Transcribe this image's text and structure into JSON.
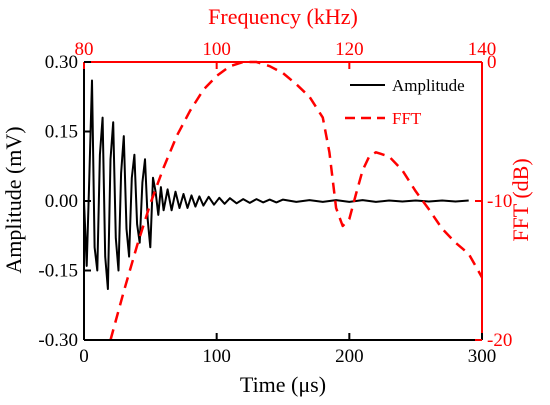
{
  "chart_data": {
    "type": "line",
    "title": "",
    "colors": {
      "amplitude": "#000000",
      "fft": "#ff0000",
      "axis": "#000000",
      "secondary_axis": "#ff0000"
    },
    "axes": {
      "x_bottom": {
        "label": "Time (μs)",
        "range": [
          0,
          300
        ],
        "ticks": [
          0,
          100,
          200,
          300
        ],
        "tick_labels": [
          "0",
          "100",
          "200",
          "300"
        ]
      },
      "x_top": {
        "label": "Frequency (kHz)",
        "range": [
          80,
          140
        ],
        "ticks": [
          80,
          100,
          120,
          140
        ],
        "tick_labels": [
          "80",
          "100",
          "120",
          "140"
        ]
      },
      "y_left": {
        "label": "Amplitude (mV)",
        "range": [
          -0.3,
          0.3
        ],
        "ticks": [
          -0.3,
          -0.15,
          0.0,
          0.15,
          0.3
        ],
        "tick_labels": [
          "-0.30",
          "-0.15",
          "0.00",
          "0.15",
          "0.30"
        ]
      },
      "y_right": {
        "label": "FFT (dB)",
        "range": [
          -20,
          0
        ],
        "ticks": [
          -20,
          -10,
          0
        ],
        "tick_labels": [
          "-20",
          "-10",
          "0"
        ]
      }
    },
    "legend": {
      "placement": "top-right",
      "entries": [
        {
          "name": "Amplitude",
          "style": "solid",
          "color": "#000000"
        },
        {
          "name": "FFT",
          "style": "dashed",
          "color": "#ff0000"
        }
      ]
    },
    "series": [
      {
        "name": "Amplitude",
        "x_axis": "x_bottom",
        "y_axis": "y_left",
        "note": "damped oscillation; values read from chart",
        "x": [
          0,
          2,
          4,
          6,
          8,
          10,
          12,
          14,
          16,
          18,
          20,
          22,
          24,
          26,
          28,
          30,
          32,
          34,
          36,
          38,
          40,
          42,
          44,
          46,
          48,
          50,
          52,
          54,
          56,
          58,
          60,
          63,
          66,
          69,
          72,
          75,
          78,
          81,
          84,
          87,
          90,
          94,
          98,
          102,
          106,
          110,
          115,
          120,
          125,
          130,
          135,
          140,
          145,
          150,
          160,
          170,
          180,
          190,
          200,
          210,
          220,
          230,
          240,
          250,
          260,
          270,
          280,
          290
        ],
        "y": [
          0.0,
          -0.14,
          0.05,
          0.26,
          -0.1,
          -0.15,
          0.1,
          0.18,
          -0.12,
          -0.19,
          0.09,
          0.17,
          -0.08,
          -0.15,
          0.06,
          0.14,
          -0.06,
          -0.12,
          0.05,
          0.1,
          -0.05,
          -0.09,
          0.04,
          0.09,
          -0.04,
          -0.1,
          0.05,
          0.02,
          -0.03,
          0.03,
          -0.02,
          0.025,
          -0.02,
          0.02,
          -0.015,
          0.015,
          -0.015,
          0.012,
          -0.012,
          0.01,
          -0.01,
          0.009,
          -0.008,
          0.007,
          -0.006,
          0.006,
          -0.005,
          0.004,
          -0.004,
          0.004,
          -0.003,
          0.003,
          -0.003,
          0.003,
          -0.002,
          0.002,
          -0.002,
          0.002,
          -0.002,
          0.002,
          -0.002,
          0.001,
          -0.001,
          0.001,
          -0.001,
          0.001,
          -0.001,
          0.001
        ]
      },
      {
        "name": "FFT",
        "x_axis": "x_top",
        "y_axis": "y_right",
        "x": [
          84,
          86,
          88,
          90,
          92,
          94,
          96,
          98,
          100,
          102,
          104,
          106,
          108,
          110,
          112,
          114,
          116,
          117,
          118,
          119,
          120,
          121,
          122,
          123,
          124,
          126,
          128,
          130,
          132,
          134,
          136,
          138,
          140
        ],
        "y": [
          -20,
          -16.5,
          -13.2,
          -10.2,
          -7.6,
          -5.3,
          -3.5,
          -2.0,
          -1.0,
          -0.3,
          0.0,
          0.0,
          -0.3,
          -0.8,
          -1.6,
          -2.5,
          -4.0,
          -6.5,
          -10.5,
          -11.8,
          -11.3,
          -9.5,
          -7.8,
          -6.8,
          -6.5,
          -6.8,
          -7.8,
          -9.3,
          -10.6,
          -12.0,
          -13.0,
          -13.8,
          -15.5
        ]
      }
    ]
  }
}
